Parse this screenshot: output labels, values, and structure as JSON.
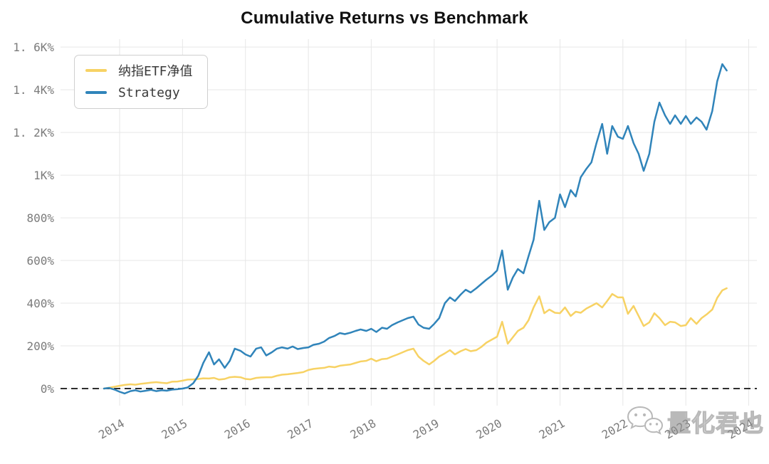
{
  "title": "Cumulative Returns vs Benchmark",
  "legend": {
    "items": [
      {
        "label": "纳指ETF净值",
        "color": "#f7d264"
      },
      {
        "label": "Strategy",
        "color": "#3084ba"
      }
    ]
  },
  "watermark": {
    "icon": "wechat-icon",
    "text": "量化君也"
  },
  "chart_data": {
    "type": "line",
    "title": "Cumulative Returns vs Benchmark",
    "xlabel": "",
    "ylabel": "",
    "xlim": [
      2013.06,
      2024.13
    ],
    "ylim_pct": [
      -80,
      1637
    ],
    "grid": true,
    "grid_color": "#e7e7e7",
    "legend_position": "upper-left",
    "zero_line": {
      "value": 0,
      "style": "dashed",
      "color": "#111111"
    },
    "x_ticks": [
      {
        "value": 2014,
        "label": "2014"
      },
      {
        "value": 2015,
        "label": "2015"
      },
      {
        "value": 2016,
        "label": "2016"
      },
      {
        "value": 2017,
        "label": "2017"
      },
      {
        "value": 2018,
        "label": "2018"
      },
      {
        "value": 2019,
        "label": "2019"
      },
      {
        "value": 2020,
        "label": "2020"
      },
      {
        "value": 2021,
        "label": "2021"
      },
      {
        "value": 2022,
        "label": "2022"
      },
      {
        "value": 2023,
        "label": "2023"
      },
      {
        "value": 2024,
        "label": "2024"
      }
    ],
    "y_ticks": [
      {
        "value": 0,
        "label": "0%"
      },
      {
        "value": 200,
        "label": "200%"
      },
      {
        "value": 400,
        "label": "400%"
      },
      {
        "value": 600,
        "label": "600%"
      },
      {
        "value": 800,
        "label": "800%"
      },
      {
        "value": 1000,
        "label": "1K%"
      },
      {
        "value": 1200,
        "label": "1. 2K%"
      },
      {
        "value": 1400,
        "label": "1. 4K%"
      },
      {
        "value": 1600,
        "label": "1. 6K%"
      }
    ],
    "series": [
      {
        "key": "benchmark",
        "name": "纳指ETF净值",
        "color": "#f7d264",
        "points": [
          [
            2013.75,
            0
          ],
          [
            2013.83,
            4
          ],
          [
            2013.92,
            9
          ],
          [
            2014.0,
            13
          ],
          [
            2014.08,
            17
          ],
          [
            2014.17,
            20
          ],
          [
            2014.25,
            18
          ],
          [
            2014.33,
            22
          ],
          [
            2014.42,
            25
          ],
          [
            2014.5,
            28
          ],
          [
            2014.58,
            30
          ],
          [
            2014.67,
            27
          ],
          [
            2014.75,
            25
          ],
          [
            2014.83,
            32
          ],
          [
            2014.92,
            33
          ],
          [
            2015.0,
            37
          ],
          [
            2015.08,
            42
          ],
          [
            2015.17,
            43
          ],
          [
            2015.25,
            45
          ],
          [
            2015.33,
            48
          ],
          [
            2015.42,
            47
          ],
          [
            2015.5,
            50
          ],
          [
            2015.58,
            42
          ],
          [
            2015.67,
            45
          ],
          [
            2015.75,
            53
          ],
          [
            2015.83,
            55
          ],
          [
            2015.92,
            53
          ],
          [
            2016.0,
            45
          ],
          [
            2016.08,
            43
          ],
          [
            2016.17,
            50
          ],
          [
            2016.25,
            52
          ],
          [
            2016.33,
            53
          ],
          [
            2016.42,
            53
          ],
          [
            2016.5,
            60
          ],
          [
            2016.58,
            65
          ],
          [
            2016.67,
            67
          ],
          [
            2016.75,
            70
          ],
          [
            2016.83,
            73
          ],
          [
            2016.92,
            77
          ],
          [
            2017.0,
            87
          ],
          [
            2017.08,
            92
          ],
          [
            2017.17,
            95
          ],
          [
            2017.25,
            97
          ],
          [
            2017.33,
            103
          ],
          [
            2017.42,
            100
          ],
          [
            2017.5,
            107
          ],
          [
            2017.58,
            110
          ],
          [
            2017.67,
            113
          ],
          [
            2017.75,
            120
          ],
          [
            2017.83,
            127
          ],
          [
            2017.92,
            130
          ],
          [
            2018.0,
            140
          ],
          [
            2018.08,
            128
          ],
          [
            2018.17,
            138
          ],
          [
            2018.25,
            140
          ],
          [
            2018.33,
            150
          ],
          [
            2018.42,
            160
          ],
          [
            2018.5,
            170
          ],
          [
            2018.58,
            180
          ],
          [
            2018.67,
            187
          ],
          [
            2018.75,
            150
          ],
          [
            2018.83,
            130
          ],
          [
            2018.92,
            113
          ],
          [
            2019.0,
            130
          ],
          [
            2019.08,
            150
          ],
          [
            2019.17,
            165
          ],
          [
            2019.25,
            180
          ],
          [
            2019.33,
            160
          ],
          [
            2019.42,
            175
          ],
          [
            2019.5,
            185
          ],
          [
            2019.58,
            175
          ],
          [
            2019.67,
            180
          ],
          [
            2019.75,
            195
          ],
          [
            2019.83,
            215
          ],
          [
            2019.92,
            230
          ],
          [
            2020.0,
            243
          ],
          [
            2020.08,
            313
          ],
          [
            2020.17,
            210
          ],
          [
            2020.25,
            240
          ],
          [
            2020.33,
            270
          ],
          [
            2020.42,
            285
          ],
          [
            2020.5,
            320
          ],
          [
            2020.58,
            380
          ],
          [
            2020.67,
            432
          ],
          [
            2020.75,
            353
          ],
          [
            2020.83,
            370
          ],
          [
            2020.92,
            355
          ],
          [
            2021.0,
            353
          ],
          [
            2021.08,
            380
          ],
          [
            2021.17,
            340
          ],
          [
            2021.25,
            360
          ],
          [
            2021.33,
            355
          ],
          [
            2021.42,
            375
          ],
          [
            2021.5,
            387
          ],
          [
            2021.58,
            400
          ],
          [
            2021.67,
            380
          ],
          [
            2021.75,
            410
          ],
          [
            2021.83,
            443
          ],
          [
            2021.92,
            427
          ],
          [
            2022.0,
            427
          ],
          [
            2022.08,
            350
          ],
          [
            2022.17,
            387
          ],
          [
            2022.25,
            340
          ],
          [
            2022.33,
            293
          ],
          [
            2022.42,
            310
          ],
          [
            2022.5,
            353
          ],
          [
            2022.58,
            330
          ],
          [
            2022.67,
            297
          ],
          [
            2022.75,
            313
          ],
          [
            2022.83,
            310
          ],
          [
            2022.92,
            293
          ],
          [
            2023.0,
            297
          ],
          [
            2023.08,
            330
          ],
          [
            2023.17,
            303
          ],
          [
            2023.25,
            330
          ],
          [
            2023.33,
            347
          ],
          [
            2023.42,
            370
          ],
          [
            2023.5,
            425
          ],
          [
            2023.58,
            460
          ],
          [
            2023.65,
            470
          ]
        ]
      },
      {
        "key": "strategy",
        "name": "Strategy",
        "color": "#3084ba",
        "points": [
          [
            2013.75,
            0
          ],
          [
            2013.83,
            3
          ],
          [
            2013.92,
            -5
          ],
          [
            2014.0,
            -15
          ],
          [
            2014.08,
            -23
          ],
          [
            2014.17,
            -12
          ],
          [
            2014.25,
            -8
          ],
          [
            2014.33,
            -14
          ],
          [
            2014.42,
            -10
          ],
          [
            2014.5,
            -6
          ],
          [
            2014.58,
            -12
          ],
          [
            2014.67,
            -8
          ],
          [
            2014.75,
            -10
          ],
          [
            2014.83,
            -5
          ],
          [
            2014.92,
            -3
          ],
          [
            2015.0,
            0
          ],
          [
            2015.08,
            5
          ],
          [
            2015.17,
            25
          ],
          [
            2015.25,
            60
          ],
          [
            2015.33,
            120
          ],
          [
            2015.42,
            170
          ],
          [
            2015.5,
            113
          ],
          [
            2015.58,
            137
          ],
          [
            2015.67,
            97
          ],
          [
            2015.75,
            130
          ],
          [
            2015.83,
            187
          ],
          [
            2015.92,
            177
          ],
          [
            2016.0,
            160
          ],
          [
            2016.08,
            150
          ],
          [
            2016.17,
            187
          ],
          [
            2016.25,
            193
          ],
          [
            2016.33,
            155
          ],
          [
            2016.42,
            170
          ],
          [
            2016.5,
            187
          ],
          [
            2016.58,
            193
          ],
          [
            2016.67,
            187
          ],
          [
            2016.75,
            197
          ],
          [
            2016.83,
            185
          ],
          [
            2016.92,
            190
          ],
          [
            2017.0,
            193
          ],
          [
            2017.08,
            205
          ],
          [
            2017.17,
            210
          ],
          [
            2017.25,
            220
          ],
          [
            2017.33,
            237
          ],
          [
            2017.42,
            247
          ],
          [
            2017.5,
            260
          ],
          [
            2017.58,
            255
          ],
          [
            2017.67,
            262
          ],
          [
            2017.75,
            270
          ],
          [
            2017.83,
            277
          ],
          [
            2017.92,
            270
          ],
          [
            2018.0,
            280
          ],
          [
            2018.08,
            265
          ],
          [
            2018.17,
            285
          ],
          [
            2018.25,
            280
          ],
          [
            2018.33,
            297
          ],
          [
            2018.42,
            310
          ],
          [
            2018.5,
            320
          ],
          [
            2018.58,
            330
          ],
          [
            2018.67,
            337
          ],
          [
            2018.75,
            300
          ],
          [
            2018.83,
            285
          ],
          [
            2018.92,
            280
          ],
          [
            2019.0,
            303
          ],
          [
            2019.08,
            330
          ],
          [
            2019.17,
            400
          ],
          [
            2019.25,
            427
          ],
          [
            2019.33,
            410
          ],
          [
            2019.42,
            440
          ],
          [
            2019.5,
            463
          ],
          [
            2019.58,
            450
          ],
          [
            2019.67,
            470
          ],
          [
            2019.75,
            490
          ],
          [
            2019.83,
            510
          ],
          [
            2019.92,
            530
          ],
          [
            2020.0,
            553
          ],
          [
            2020.08,
            647
          ],
          [
            2020.17,
            463
          ],
          [
            2020.25,
            520
          ],
          [
            2020.33,
            560
          ],
          [
            2020.42,
            540
          ],
          [
            2020.5,
            620
          ],
          [
            2020.58,
            697
          ],
          [
            2020.67,
            880
          ],
          [
            2020.75,
            743
          ],
          [
            2020.83,
            780
          ],
          [
            2020.92,
            800
          ],
          [
            2021.0,
            910
          ],
          [
            2021.08,
            850
          ],
          [
            2021.17,
            930
          ],
          [
            2021.25,
            900
          ],
          [
            2021.33,
            990
          ],
          [
            2021.42,
            1030
          ],
          [
            2021.5,
            1060
          ],
          [
            2021.58,
            1150
          ],
          [
            2021.67,
            1240
          ],
          [
            2021.75,
            1100
          ],
          [
            2021.83,
            1230
          ],
          [
            2021.92,
            1180
          ],
          [
            2022.0,
            1170
          ],
          [
            2022.08,
            1230
          ],
          [
            2022.17,
            1150
          ],
          [
            2022.25,
            1100
          ],
          [
            2022.33,
            1020
          ],
          [
            2022.42,
            1100
          ],
          [
            2022.5,
            1250
          ],
          [
            2022.58,
            1340
          ],
          [
            2022.67,
            1280
          ],
          [
            2022.75,
            1240
          ],
          [
            2022.83,
            1280
          ],
          [
            2022.92,
            1240
          ],
          [
            2023.0,
            1277
          ],
          [
            2023.08,
            1240
          ],
          [
            2023.17,
            1270
          ],
          [
            2023.25,
            1250
          ],
          [
            2023.33,
            1213
          ],
          [
            2023.42,
            1300
          ],
          [
            2023.5,
            1440
          ],
          [
            2023.58,
            1520
          ],
          [
            2023.65,
            1490
          ]
        ]
      }
    ]
  }
}
